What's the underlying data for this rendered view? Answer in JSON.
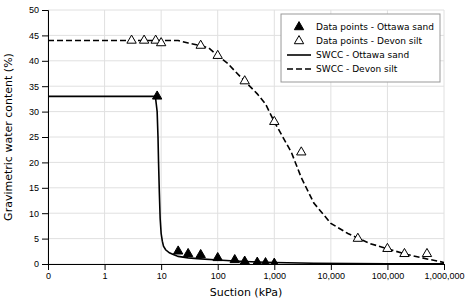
{
  "chart_data": {
    "type": "line",
    "xlabel": "Suction (kPa)",
    "ylabel": "Gravimetric water content (%)",
    "log": "x",
    "grid": true,
    "legend": "upper right",
    "xlim": [
      0.1,
      1000000
    ],
    "ylim": [
      0,
      50
    ],
    "xticks": [
      {
        "value": 0.1,
        "label": "0"
      },
      1,
      10,
      100,
      {
        "value": 1000,
        "label": "1,000"
      },
      {
        "value": 10000,
        "label": "10,000"
      },
      {
        "value": 100000,
        "label": "100,000"
      },
      {
        "value": 1000000,
        "label": "1,000,000"
      }
    ],
    "yticks": [
      0,
      5,
      10,
      15,
      20,
      25,
      30,
      35,
      40,
      45,
      50
    ],
    "series": [
      {
        "name": "Data points - Ottawa sand",
        "type": "scatter",
        "marker": "triangle",
        "color": "#000000",
        "x": [
          8.5,
          20,
          30,
          50,
          100,
          200,
          300,
          500,
          700,
          1000
        ],
        "values": [
          33,
          2.5,
          2.0,
          1.8,
          1.2,
          0.8,
          0.5,
          0.3,
          0.2,
          0.1
        ]
      },
      {
        "name": "Data points - Devon silt",
        "type": "scatter",
        "marker": "triangle-open",
        "color": "#000000",
        "x": [
          3,
          5,
          8,
          10,
          50,
          100,
          300,
          1000,
          3000,
          30000,
          100000,
          200000,
          500000
        ],
        "values": [
          44,
          44,
          44,
          43.5,
          43,
          41,
          36,
          28,
          22,
          5,
          3,
          2,
          2
        ]
      },
      {
        "name": "SWCC - Ottawa sand",
        "type": "line",
        "line_style": "solid",
        "color": "#000000",
        "x": [
          0.1,
          0.5,
          1,
          2,
          3,
          4,
          5,
          6,
          7,
          7.2,
          7.5,
          7.8,
          8.0,
          8.2,
          8.5,
          8.8,
          9.0,
          9.3,
          9.6,
          10.0,
          10.5,
          11,
          12,
          14,
          16,
          20,
          30,
          50,
          100,
          200,
          500,
          1000,
          5000,
          100000,
          1000000
        ],
        "values": [
          33,
          33,
          33,
          33,
          33,
          33,
          33,
          33,
          33,
          33,
          33,
          32.8,
          32.5,
          31.5,
          30,
          25,
          20,
          14,
          9,
          6,
          4.5,
          3.5,
          2.8,
          2.2,
          1.9,
          1.5,
          1.2,
          1.0,
          0.8,
          0.6,
          0.4,
          0.3,
          0.15,
          0.05,
          0.02
        ]
      },
      {
        "name": "SWCC - Devon silt",
        "type": "line",
        "line_style": "dashed",
        "color": "#000000",
        "x": [
          0.1,
          0.5,
          1,
          2,
          3,
          5,
          7,
          10,
          20,
          30,
          50,
          70,
          100,
          150,
          200,
          300,
          500,
          700,
          1000,
          2000,
          3000,
          5000,
          10000,
          20000,
          50000,
          100000,
          200000,
          500000,
          1000000
        ],
        "values": [
          44,
          44,
          44,
          44,
          44,
          44,
          44,
          44,
          44,
          43.5,
          43,
          42.5,
          41,
          39.5,
          38,
          36,
          33.5,
          31.5,
          28,
          22,
          17,
          12,
          8,
          6,
          4,
          3,
          2,
          1,
          0.3
        ]
      }
    ]
  }
}
